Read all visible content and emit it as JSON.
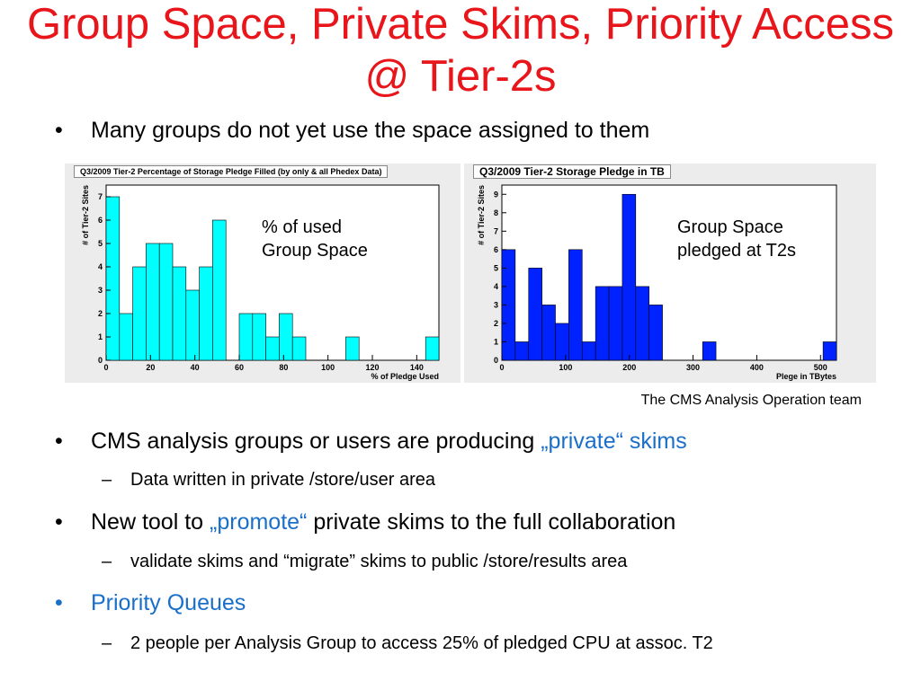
{
  "title": "Group Space, Private Skims, Priority Access @ Tier-2s",
  "bullet1": "Many groups do not yet use the space assigned to them",
  "credit": "The CMS Analysis Operation team",
  "bullet2": {
    "text": "CMS analysis groups or users are producing ",
    "highlight": "„private“ skims"
  },
  "sub2": "Data written in private /store/user area",
  "bullet3": {
    "prefix": "New tool to ",
    "highlight": "„promote“",
    "suffix": " private skims to the full collaboration"
  },
  "sub3": "validate skims and “migrate” skims to public /store/results area",
  "bullet4": "Priority Queues",
  "sub4": "2 people per Analysis Group to access 25% of pledged CPU at assoc. T2",
  "bullet_glyph": "•",
  "dash_glyph": "–",
  "colors": {
    "title": "#e8151a",
    "accent": "#1a6fc9",
    "hist1": "#00ffff",
    "hist2": "#0022ff"
  },
  "chart_data": [
    {
      "type": "bar",
      "title": "Q3/2009 Tier-2 Percentage of Storage Pledge Filled (by only & all Phedex Data)",
      "xlabel": "% of Pledge Used",
      "ylabel": "# of Tier-2 Sites",
      "annotation": [
        "% of used",
        "Group Space"
      ],
      "xlim": [
        0,
        150
      ],
      "ylim": [
        0,
        7.5
      ],
      "bin_width": 6,
      "bins_start": [
        0,
        6,
        12,
        18,
        24,
        30,
        36,
        42,
        48,
        54,
        60,
        66,
        72,
        78,
        84,
        90,
        96,
        102,
        108,
        114,
        120,
        126,
        132,
        138,
        144
      ],
      "values": [
        7,
        2,
        4,
        5,
        5,
        4,
        3,
        4,
        6,
        0,
        2,
        2,
        1,
        2,
        1,
        0,
        0,
        0,
        1,
        0,
        0,
        0,
        0,
        0,
        1
      ],
      "xticks": [
        "0",
        "20",
        "40",
        "60",
        "80",
        "100",
        "120",
        "140"
      ],
      "xtick_values": [
        0,
        20,
        40,
        60,
        80,
        100,
        120,
        140
      ],
      "yticks": [
        "0",
        "1",
        "2",
        "3",
        "4",
        "5",
        "6",
        "7"
      ],
      "ytick_values": [
        0,
        1,
        2,
        3,
        4,
        5,
        6,
        7
      ]
    },
    {
      "type": "bar",
      "title": "Q3/2009 Tier-2 Storage Pledge in TB",
      "xlabel": "Plege in TBytes",
      "ylabel": "# of Tier-2 Sites",
      "annotation": [
        "Group Space",
        "pledged at T2s"
      ],
      "xlim": [
        0,
        525
      ],
      "ylim": [
        0,
        9.5
      ],
      "bin_width": 21,
      "bins_start": [
        0,
        21,
        42,
        63,
        84,
        105,
        126,
        147,
        168,
        189,
        210,
        231,
        252,
        273,
        294,
        315,
        336,
        357,
        378,
        399,
        420,
        441,
        462,
        483,
        504
      ],
      "values": [
        6,
        1,
        5,
        3,
        2,
        6,
        1,
        4,
        4,
        9,
        4,
        3,
        0,
        0,
        0,
        1,
        0,
        0,
        0,
        0,
        0,
        0,
        0,
        0,
        1
      ],
      "xticks": [
        "0",
        "100",
        "200",
        "300",
        "400",
        "500"
      ],
      "xtick_values": [
        0,
        100,
        200,
        300,
        400,
        500
      ],
      "yticks": [
        "0",
        "1",
        "2",
        "3",
        "4",
        "5",
        "6",
        "7",
        "8",
        "9"
      ],
      "ytick_values": [
        0,
        1,
        2,
        3,
        4,
        5,
        6,
        7,
        8,
        9
      ]
    }
  ]
}
